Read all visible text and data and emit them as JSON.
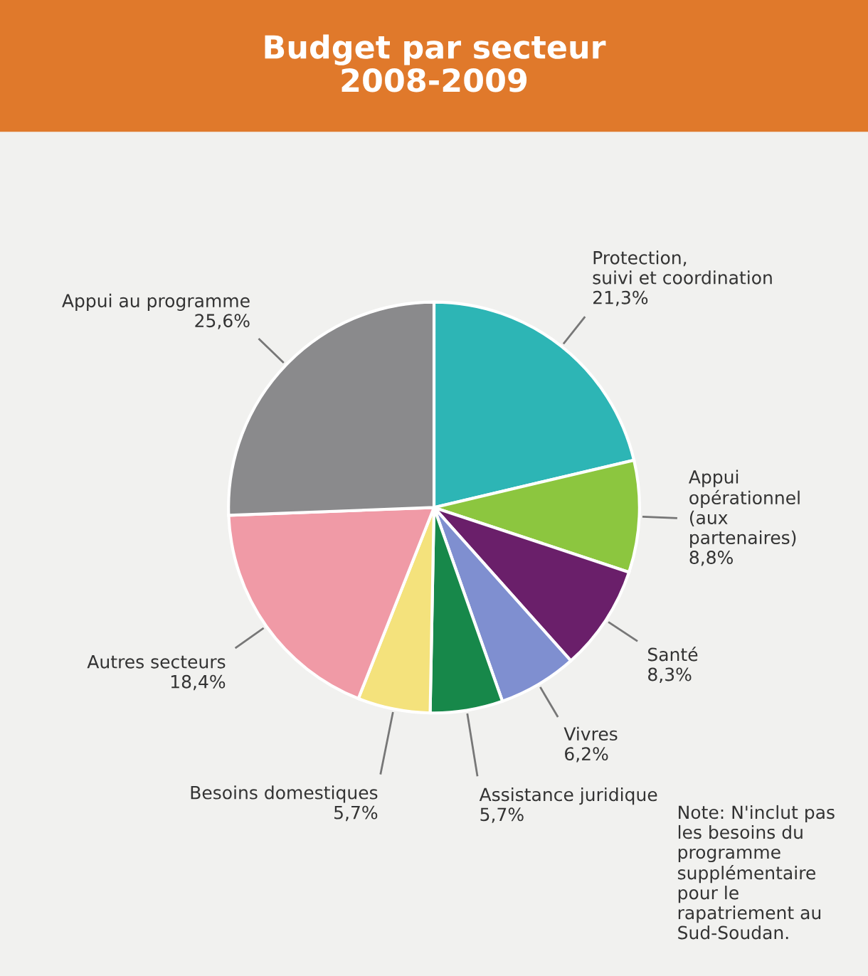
{
  "chart_data": {
    "type": "pie",
    "title": "Budget par secteur\n2008-2009",
    "categories": [
      "Protection,\nsuivi et coordination",
      "Appui\nopérationnel\n(aux\npartenaires)",
      "Santé",
      "Vivres",
      "Assistance juridique",
      "Besoins domestiques",
      "Autres secteurs",
      "Appui au programme"
    ],
    "values": [
      21.3,
      8.8,
      8.3,
      6.2,
      5.7,
      5.7,
      18.4,
      25.6
    ],
    "value_labels": [
      "21,3%",
      "8,8%",
      "8,3%",
      "6,2%",
      "5,7%",
      "5,7%",
      "18,4%",
      "25,6%"
    ],
    "colors": [
      "#2db5b5",
      "#8cc63f",
      "#6a1f6a",
      "#7f8fd0",
      "#17884a",
      "#f4e27c",
      "#f09aa6",
      "#8a8a8c"
    ],
    "annotations": [
      "Note: N'inclut pas\nles besoins du\nprogramme\nsupplémentaire\npour le\nrapatriement au\nSud-Soudan."
    ],
    "legend": false
  }
}
